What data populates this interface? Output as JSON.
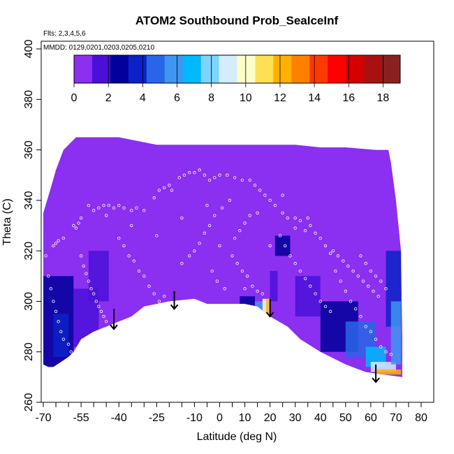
{
  "chart_data": {
    "type": "heatmap",
    "title": "ATOM2 Southbound Prob_SeaIceInf",
    "subtitle_flights": "Flts: 2,3,4,5,6",
    "subtitle_dates": "MMDD: 0129,0201,0203,0205,0210",
    "xlabel": "Latitude (deg N)",
    "ylabel": "Theta (C)",
    "xlim": [
      -70,
      80
    ],
    "ylim": [
      260,
      400
    ],
    "x_tick_labels": [
      "-70",
      "-55",
      "-40",
      "-25",
      "-10",
      "0",
      "10",
      "20",
      "30",
      "40",
      "50",
      "60",
      "70",
      "80"
    ],
    "x_tick_values": [
      -70,
      -55,
      -40,
      -25,
      -10,
      0,
      10,
      20,
      30,
      40,
      50,
      60,
      70,
      80
    ],
    "x_minor_ticks": [
      -65,
      -60,
      -50,
      -45,
      -35,
      -30,
      -20,
      -15,
      -5,
      5,
      15,
      25,
      35,
      45,
      55,
      65,
      75
    ],
    "y_ticks": [
      260,
      280,
      300,
      320,
      340,
      360,
      380,
      400
    ],
    "colorbar": {
      "range": [
        0,
        19
      ],
      "tick_values": [
        0,
        2,
        4,
        6,
        8,
        10,
        12,
        14,
        16,
        18
      ],
      "tick_labels": [
        "0",
        "2",
        "4",
        "6",
        "8",
        "10",
        "12",
        "14",
        "16",
        "18"
      ],
      "colors": [
        "#8b2ff0",
        "#4a10d8",
        "#00009a",
        "#0a22c8",
        "#2866e8",
        "#3e96f2",
        "#00b8ff",
        "#7cd4ff",
        "#d4ecff",
        "#ffffcc",
        "#ffe055",
        "#ffb000",
        "#ff8000",
        "#ff3a00",
        "#ff0000",
        "#d40000",
        "#aa1010",
        "#8a2020"
      ]
    },
    "background_value": 0,
    "upper_boundary": [
      [
        -70,
        335
      ],
      [
        -67,
        345
      ],
      [
        -65,
        352
      ],
      [
        -62,
        360
      ],
      [
        -59,
        363
      ],
      [
        -57,
        365
      ],
      [
        -55,
        365
      ],
      [
        -40,
        365
      ],
      [
        -25,
        362
      ],
      [
        -10,
        362
      ],
      [
        0,
        362
      ],
      [
        10,
        362
      ],
      [
        20,
        362
      ],
      [
        30,
        362
      ],
      [
        40,
        361
      ],
      [
        50,
        361
      ],
      [
        62,
        360
      ],
      [
        67,
        360
      ],
      [
        68,
        355
      ],
      [
        70,
        340
      ],
      [
        71,
        330
      ],
      [
        72,
        320
      ],
      [
        72.5,
        285
      ],
      [
        72.5,
        270
      ]
    ],
    "lower_boundary": [
      [
        72.5,
        270
      ],
      [
        65,
        271
      ],
      [
        58,
        272
      ],
      [
        50,
        275
      ],
      [
        40,
        280
      ],
      [
        32,
        285
      ],
      [
        27,
        290
      ],
      [
        20,
        294
      ],
      [
        15,
        298
      ],
      [
        10,
        299
      ],
      [
        5,
        299
      ],
      [
        0,
        299
      ],
      [
        -5,
        299
      ],
      [
        -10,
        301
      ],
      [
        -20,
        300
      ],
      [
        -30,
        298
      ],
      [
        -35,
        294
      ],
      [
        -40,
        292
      ],
      [
        -45,
        290
      ],
      [
        -50,
        288
      ],
      [
        -55,
        285
      ],
      [
        -58,
        280
      ],
      [
        -60,
        278
      ],
      [
        -63,
        276
      ],
      [
        -66,
        274
      ],
      [
        -68,
        274
      ],
      [
        -70,
        275
      ]
    ],
    "high_value_patches": [
      {
        "lat": [
          -70,
          -58
        ],
        "theta": [
          274,
          310
        ],
        "value": 3
      },
      {
        "lat": [
          -58,
          -48
        ],
        "theta": [
          282,
          305
        ],
        "value": 2
      },
      {
        "lat": [
          -52,
          -44
        ],
        "theta": [
          300,
          320
        ],
        "value": 2
      },
      {
        "lat": [
          -66,
          -60
        ],
        "theta": [
          278,
          295
        ],
        "value": 4
      },
      {
        "lat": [
          -20,
          -12
        ],
        "theta": [
          305,
          315
        ],
        "value": 1
      },
      {
        "lat": [
          8,
          14
        ],
        "theta": [
          298,
          302
        ],
        "value": 3
      },
      {
        "lat": [
          14,
          18
        ],
        "theta": [
          296,
          300
        ],
        "value": 6
      },
      {
        "lat": [
          17,
          20
        ],
        "theta": [
          294,
          301
        ],
        "value": 10
      },
      {
        "lat": [
          18.5,
          19.5
        ],
        "theta": [
          294,
          301
        ],
        "value": 12
      },
      {
        "lat": [
          20,
          23
        ],
        "theta": [
          300,
          312
        ],
        "value": 2
      },
      {
        "lat": [
          22,
          28
        ],
        "theta": [
          318,
          326
        ],
        "value": 3
      },
      {
        "lat": [
          30,
          40
        ],
        "theta": [
          294,
          310
        ],
        "value": 2
      },
      {
        "lat": [
          40,
          55
        ],
        "theta": [
          280,
          300
        ],
        "value": 3
      },
      {
        "lat": [
          50,
          62
        ],
        "theta": [
          278,
          292
        ],
        "value": 5
      },
      {
        "lat": [
          58,
          66
        ],
        "theta": [
          274,
          282
        ],
        "value": 7
      },
      {
        "lat": [
          60,
          70
        ],
        "theta": [
          272,
          276
        ],
        "value": 9
      },
      {
        "lat": [
          62,
          72
        ],
        "theta": [
          271,
          273
        ],
        "value": 12
      },
      {
        "lat": [
          66,
          72
        ],
        "theta": [
          290,
          320
        ],
        "value": 4
      },
      {
        "lat": [
          68,
          72
        ],
        "theta": [
          275,
          300
        ],
        "value": 6
      }
    ],
    "arrows": [
      {
        "lat": -42,
        "theta_top": 297,
        "theta_tip": 289
      },
      {
        "lat": -18,
        "theta_top": 304,
        "theta_tip": 297
      },
      {
        "lat": 20,
        "theta_top": 301,
        "theta_tip": 294
      },
      {
        "lat": 62,
        "theta_top": 275,
        "theta_tip": 268
      }
    ],
    "sample_points": [
      [
        -66,
        322
      ],
      [
        -65,
        323
      ],
      [
        -64,
        324
      ],
      [
        -62,
        325
      ],
      [
        -58,
        330
      ],
      [
        -57,
        329
      ],
      [
        -56,
        331
      ],
      [
        -55,
        333
      ],
      [
        -50,
        336
      ],
      [
        -48,
        337
      ],
      [
        -46,
        338
      ],
      [
        -44,
        338
      ],
      [
        -42,
        337
      ],
      [
        -40,
        338
      ],
      [
        -38,
        337
      ],
      [
        -35,
        336
      ],
      [
        -33,
        337
      ],
      [
        -30,
        336
      ],
      [
        -26,
        341
      ],
      [
        -24,
        344
      ],
      [
        -22,
        345
      ],
      [
        -20,
        346
      ],
      [
        -19,
        344
      ],
      [
        -16,
        349
      ],
      [
        -14,
        350
      ],
      [
        -12,
        351
      ],
      [
        -10,
        351
      ],
      [
        -8,
        352
      ],
      [
        -6,
        350
      ],
      [
        -4,
        348
      ],
      [
        -2,
        349
      ],
      [
        0,
        350
      ],
      [
        3,
        350
      ],
      [
        6,
        349
      ],
      [
        9,
        348
      ],
      [
        12,
        348
      ],
      [
        14,
        346
      ],
      [
        16,
        344
      ],
      [
        18,
        342
      ],
      [
        20,
        340
      ],
      [
        22,
        338
      ],
      [
        25,
        335
      ],
      [
        27,
        333
      ],
      [
        30,
        333
      ],
      [
        32,
        332
      ],
      [
        35,
        333
      ],
      [
        -69,
        318
      ],
      [
        -68,
        310
      ],
      [
        -67,
        305
      ],
      [
        -66,
        300
      ],
      [
        -65,
        296
      ],
      [
        -64,
        292
      ],
      [
        -63,
        288
      ],
      [
        -62,
        285
      ],
      [
        -60,
        283
      ],
      [
        -59,
        280
      ],
      [
        -58,
        278
      ],
      [
        -55,
        318
      ],
      [
        -54,
        314
      ],
      [
        -53,
        311
      ],
      [
        -52,
        308
      ],
      [
        -51,
        305
      ],
      [
        -50,
        303
      ],
      [
        -49,
        300
      ],
      [
        -48,
        298
      ],
      [
        -47,
        296
      ],
      [
        -46,
        294
      ],
      [
        -45,
        292
      ],
      [
        -40,
        325
      ],
      [
        -38,
        322
      ],
      [
        -36,
        318
      ],
      [
        -34,
        316
      ],
      [
        -32,
        312
      ],
      [
        -30,
        310
      ],
      [
        -28,
        306
      ],
      [
        -26,
        303
      ],
      [
        -24,
        300
      ],
      [
        -22,
        302
      ],
      [
        -20,
        299
      ],
      [
        -15,
        315
      ],
      [
        -12,
        318
      ],
      [
        -10,
        320
      ],
      [
        -8,
        323
      ],
      [
        -6,
        327
      ],
      [
        -4,
        330
      ],
      [
        -2,
        334
      ],
      [
        1,
        337
      ],
      [
        4,
        340
      ],
      [
        -3,
        312
      ],
      [
        -1,
        308
      ],
      [
        2,
        305
      ],
      [
        5,
        318
      ],
      [
        7,
        315
      ],
      [
        9,
        312
      ],
      [
        11,
        310
      ],
      [
        13,
        306
      ],
      [
        15,
        304
      ],
      [
        17,
        303
      ],
      [
        6,
        325
      ],
      [
        8,
        328
      ],
      [
        10,
        331
      ],
      [
        12,
        334
      ],
      [
        24,
        326
      ],
      [
        26,
        322
      ],
      [
        28,
        318
      ],
      [
        30,
        315
      ],
      [
        32,
        312
      ],
      [
        34,
        309
      ],
      [
        36,
        306
      ],
      [
        38,
        303
      ],
      [
        40,
        300
      ],
      [
        42,
        298
      ],
      [
        44,
        296
      ],
      [
        46,
        312
      ],
      [
        48,
        308
      ],
      [
        50,
        304
      ],
      [
        52,
        300
      ],
      [
        54,
        297
      ],
      [
        56,
        294
      ],
      [
        58,
        290
      ],
      [
        60,
        288
      ],
      [
        62,
        285
      ],
      [
        64,
        282
      ],
      [
        66,
        280
      ],
      [
        68,
        279
      ],
      [
        45,
        320
      ],
      [
        47,
        318
      ],
      [
        49,
        316
      ],
      [
        51,
        314
      ],
      [
        53,
        312
      ],
      [
        55,
        310
      ],
      [
        57,
        308
      ],
      [
        59,
        306
      ],
      [
        61,
        304
      ],
      [
        63,
        302
      ],
      [
        38,
        327
      ],
      [
        40,
        325
      ],
      [
        42,
        322
      ],
      [
        44,
        319
      ],
      [
        36,
        330
      ],
      [
        34,
        328
      ],
      [
        56,
        318
      ],
      [
        58,
        315
      ],
      [
        60,
        312
      ],
      [
        62,
        310
      ],
      [
        64,
        308
      ],
      [
        66,
        305
      ],
      [
        -52,
        338
      ],
      [
        -45,
        334
      ],
      [
        -35,
        330
      ],
      [
        -25,
        326
      ],
      [
        -15,
        333
      ],
      [
        -5,
        338
      ],
      [
        15,
        335
      ],
      [
        25,
        342
      ],
      [
        30,
        329
      ],
      [
        20,
        322
      ],
      [
        10,
        305
      ],
      [
        0,
        322
      ]
    ]
  }
}
